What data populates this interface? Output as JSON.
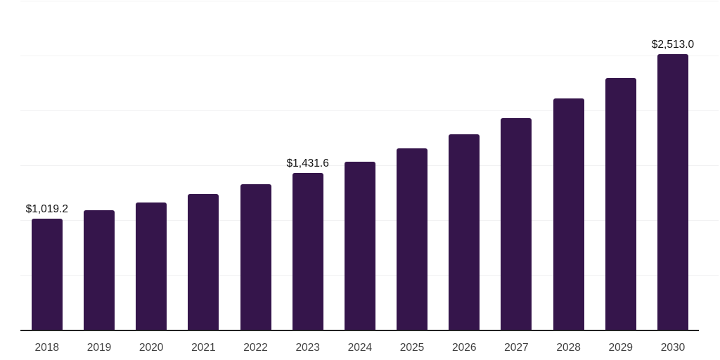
{
  "chart_data": {
    "type": "bar",
    "title": "",
    "xlabel": "",
    "ylabel": "",
    "categories": [
      "2018",
      "2019",
      "2020",
      "2021",
      "2022",
      "2023",
      "2024",
      "2025",
      "2026",
      "2027",
      "2028",
      "2029",
      "2030"
    ],
    "values": [
      1019.2,
      1092,
      1164,
      1240,
      1330,
      1431.6,
      1538,
      1657,
      1787,
      1935,
      2112,
      2298,
      2513.0
    ],
    "data_labels": [
      "$1,019.2",
      "",
      "",
      "",
      "",
      "$1,431.6",
      "",
      "",
      "",
      "",
      "",
      "",
      "$2,513.0"
    ],
    "ylim": [
      0,
      3000
    ],
    "gridline_interval": 500,
    "grid": true,
    "legend": "none",
    "y_axis_tick_labels_visible": false,
    "colors": {
      "bar": "#35154B",
      "gridline": "#F2F2F3",
      "axis_line": "#222222",
      "x_tick_label": "#404040",
      "data_label": "#111111",
      "background": "#FFFFFF"
    }
  }
}
